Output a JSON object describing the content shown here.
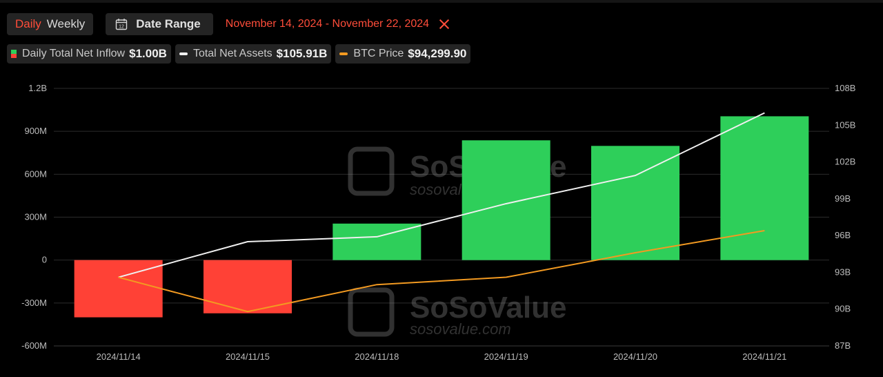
{
  "toolbar": {
    "tab_daily": "Daily",
    "tab_weekly": "Weekly",
    "date_range_label": "Date Range",
    "date_range_icon": "calendar-icon",
    "calendar_day": "12",
    "range_text": "November 14, 2024 - November 22, 2024",
    "clear_icon": "close-icon"
  },
  "legend": [
    {
      "name": "Daily Total Net Inflow",
      "value": "$1.00B"
    },
    {
      "name": "Total Net Assets",
      "value": "$105.91B"
    },
    {
      "name": "BTC Price",
      "value": "$94,299.90"
    }
  ],
  "watermark": {
    "brand": "SoSoValue",
    "url": "sosovalue.com"
  },
  "colors": {
    "accent": "#ff4d3a",
    "positive": "#2ecf5a",
    "negative": "#ff4136",
    "net_assets_line": "#f0f0f0",
    "btc_line": "#f39a21"
  },
  "chart_data": {
    "type": "bar",
    "categories": [
      "2024/11/14",
      "2024/11/15",
      "2024/11/18",
      "2024/11/19",
      "2024/11/20",
      "2024/11/21"
    ],
    "y_left": {
      "ticks": [
        "1.2B",
        "900M",
        "600M",
        "300M",
        "0",
        "-300M",
        "-600M"
      ],
      "ylim": [
        -600,
        1200
      ],
      "unit": "M"
    },
    "y_right": {
      "ticks": [
        "108B",
        "105B",
        "102B",
        "99B",
        "96B",
        "93B",
        "90B",
        "87B"
      ],
      "ylim": [
        87,
        108
      ],
      "unit": "B"
    },
    "grid": true,
    "series": [
      {
        "name": "Daily Total Net Inflow",
        "type": "bar",
        "axis": "left",
        "values": [
          -400,
          -372,
          255,
          837,
          798,
          1005
        ]
      },
      {
        "name": "Total Net Assets",
        "type": "line",
        "axis": "right",
        "values": [
          92.6,
          95.5,
          95.9,
          98.6,
          100.9,
          106.0
        ]
      },
      {
        "name": "BTC Price",
        "type": "line",
        "axis": "right",
        "values": [
          92.6,
          89.8,
          92.0,
          92.6,
          94.6,
          96.4
        ]
      }
    ]
  }
}
